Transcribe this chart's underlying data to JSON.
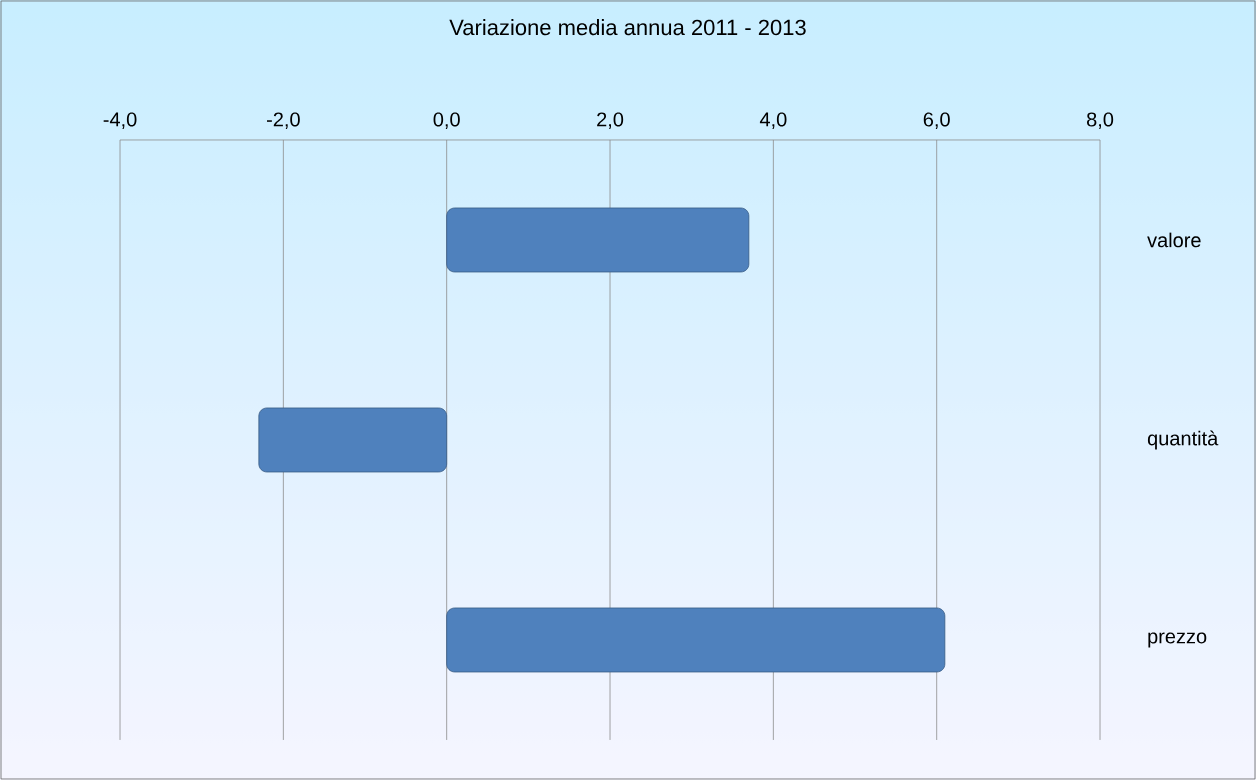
{
  "chart_data": {
    "type": "bar",
    "orientation": "horizontal",
    "title": "Variazione media  annua 2011 - 2013",
    "categories": [
      "valore",
      "quantità",
      "prezzo"
    ],
    "values": [
      3.7,
      -2.3,
      6.1
    ],
    "color": "#4f81bd",
    "xlim": [
      -4,
      8
    ],
    "xticks": [
      {
        "value": -4,
        "label": "-4,0"
      },
      {
        "value": -2,
        "label": "-2,0"
      },
      {
        "value": 0,
        "label": "0,0"
      },
      {
        "value": 2,
        "label": "2,0"
      },
      {
        "value": 4,
        "label": "4,0"
      },
      {
        "value": 6,
        "label": "6,0"
      },
      {
        "value": 8,
        "label": "8,0"
      }
    ],
    "grid": "x"
  }
}
